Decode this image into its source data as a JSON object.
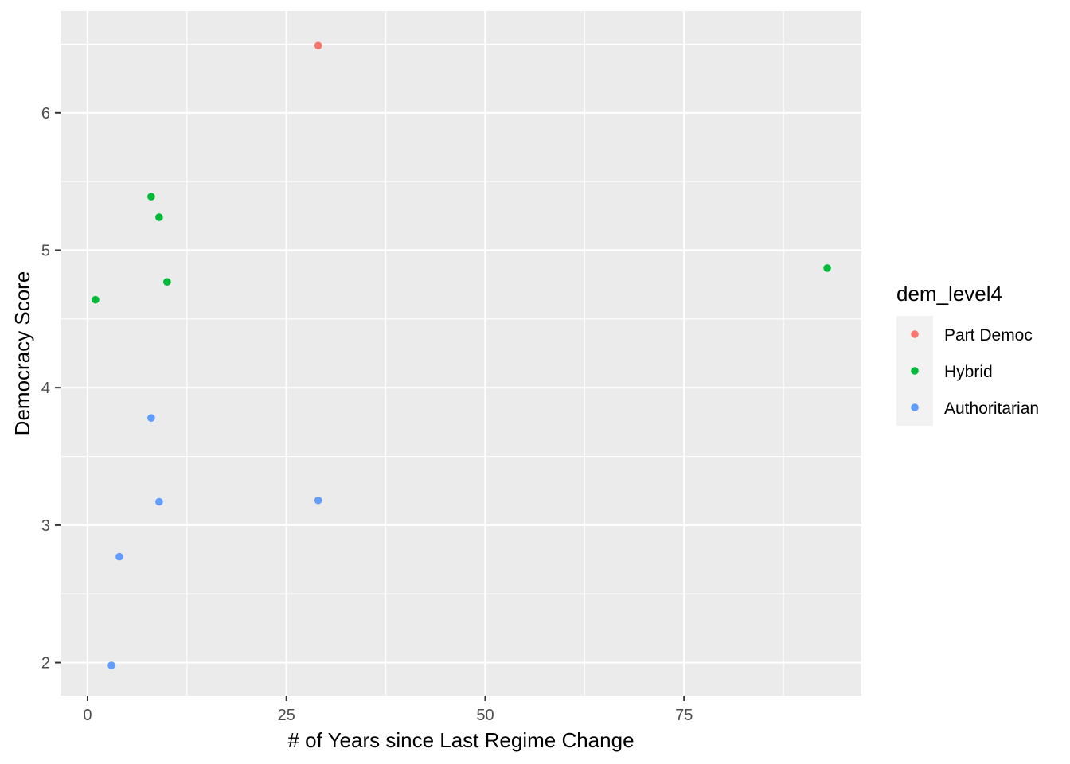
{
  "chart_data": {
    "type": "scatter",
    "title": "",
    "xlabel": "# of Years since Last Regime Change",
    "ylabel": "Democracy Score",
    "xlim": [
      -3.4,
      97.3
    ],
    "ylim": [
      1.76,
      6.74
    ],
    "x_ticks": [
      0,
      25,
      50,
      75
    ],
    "x_tick_labels": [
      "0",
      "25",
      "50",
      "75"
    ],
    "y_ticks": [
      2,
      3,
      4,
      5,
      6
    ],
    "y_tick_labels": [
      "2",
      "3",
      "4",
      "5",
      "6"
    ],
    "grid": true,
    "legend": {
      "title": "dem_level4",
      "position": "right",
      "entries": [
        "Part Democ",
        "Hybrid",
        "Authoritarian"
      ]
    },
    "series": [
      {
        "name": "Part Democ",
        "color": "#F8766D",
        "points": [
          {
            "x": 29,
            "y": 6.49
          }
        ]
      },
      {
        "name": "Hybrid",
        "color": "#00BA38",
        "points": [
          {
            "x": 1,
            "y": 4.64
          },
          {
            "x": 8,
            "y": 5.39
          },
          {
            "x": 9,
            "y": 5.24
          },
          {
            "x": 10,
            "y": 4.77
          },
          {
            "x": 93,
            "y": 4.87
          }
        ]
      },
      {
        "name": "Authoritarian",
        "color": "#619CFF",
        "points": [
          {
            "x": 3,
            "y": 1.98
          },
          {
            "x": 4,
            "y": 2.77
          },
          {
            "x": 8,
            "y": 3.78
          },
          {
            "x": 9,
            "y": 3.17
          },
          {
            "x": 29,
            "y": 3.18
          }
        ]
      }
    ]
  }
}
